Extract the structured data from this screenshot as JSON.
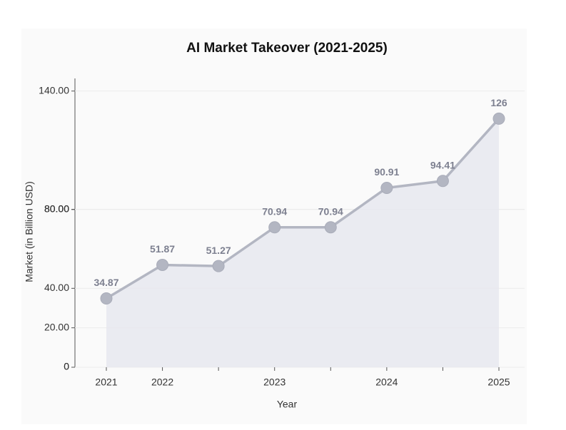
{
  "chart_data": {
    "type": "line",
    "title": "AI Market Takeover (2021-2025)",
    "x_label": "Year",
    "y_label": "Market (in Billion USD)",
    "categories": [
      "2021",
      "2022",
      null,
      "2023",
      null,
      "2024",
      null,
      "2025"
    ],
    "values": [
      34.87,
      51.87,
      51.27,
      70.94,
      70.94,
      90.91,
      94.41,
      126
    ],
    "color": "#b3b6c2",
    "area_color": "#e6e7ef",
    "ylim": [
      0,
      150
    ],
    "yticks": [
      0,
      {
        "value": 0,
        "label": "0"
      },
      {
        "value": 20,
        "label": "20.00"
      },
      {
        "value": 40,
        "label": "40.00"
      },
      {
        "value": 80,
        "label": "80.00"
      },
      {
        "value": 80,
        "label": "80.00"
      },
      {
        "value": 80,
        "label": "80.00"
      },
      {
        "value": 140,
        "label": "140.00"
      }
    ],
    "grid": true
  }
}
